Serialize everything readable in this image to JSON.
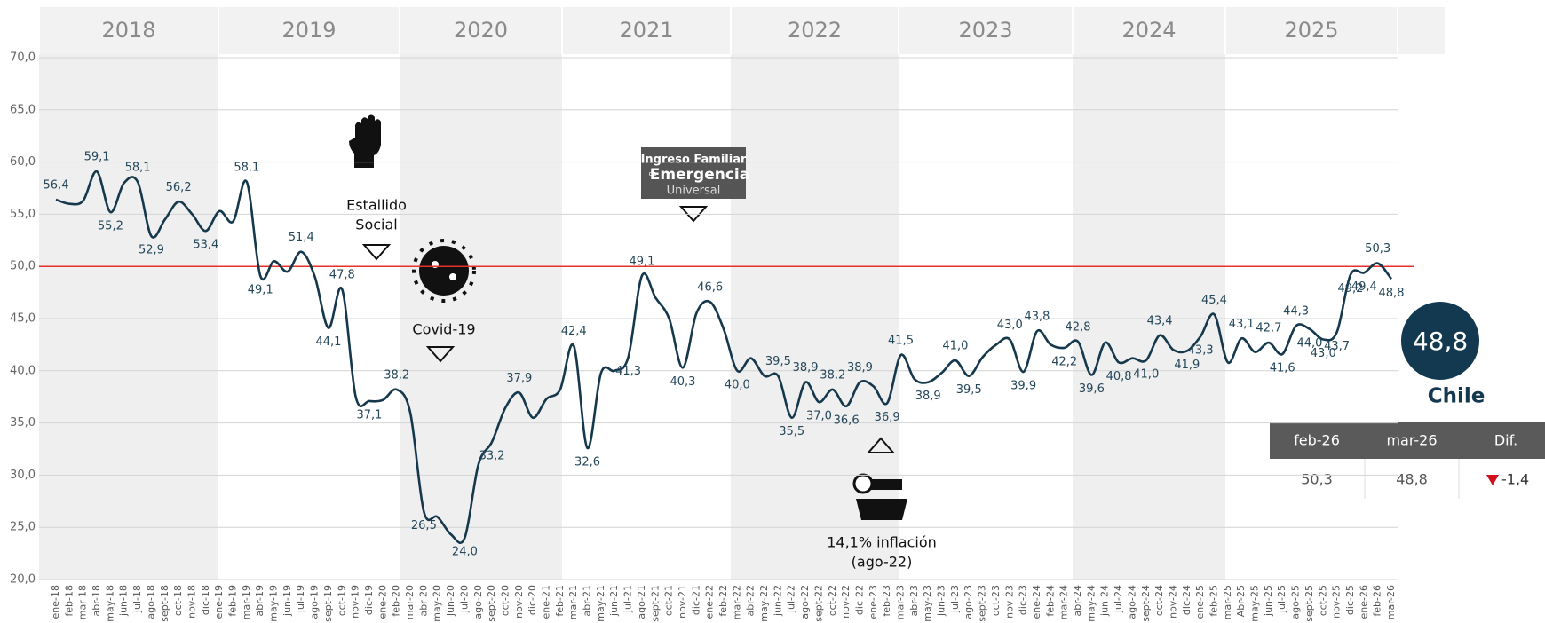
{
  "chart_data": {
    "type": "line",
    "years": [
      "2018",
      "2019",
      "2020",
      "2021",
      "2022",
      "2023",
      "2024",
      "2025"
    ],
    "categories": [
      "ene-18",
      "feb-18",
      "mar-18",
      "abr-18",
      "may-18",
      "jun-18",
      "jul-18",
      "ago-18",
      "sept-18",
      "oct-18",
      "nov-18",
      "dic-18",
      "ene-19",
      "feb-19",
      "mar-19",
      "abr-19",
      "may-19",
      "jun-19",
      "jul-19",
      "ago-19",
      "sept-19",
      "oct-19",
      "nov-19",
      "dic-19",
      "ene-20",
      "feb-20",
      "mar-20",
      "abr-20",
      "may-20",
      "jun-20",
      "jul-20",
      "ago-20",
      "sept-20",
      "oct-20",
      "nov-20",
      "dic-20",
      "ene-21",
      "feb-21",
      "mar-21",
      "abr-21",
      "may-21",
      "jun-21",
      "jul-21",
      "ago-21",
      "sept-21",
      "oct-21",
      "nov-21",
      "dic-21",
      "ene-22",
      "feb-22",
      "mar-22",
      "abr-22",
      "may-22",
      "jun-22",
      "jul-22",
      "ago-22",
      "sept-22",
      "oct-22",
      "nov-22",
      "dic-22",
      "ene-23",
      "feb-23",
      "mar-23",
      "abr-23",
      "may-23",
      "jun-23",
      "jul-23",
      "ago-23",
      "sept-23",
      "oct-23",
      "nov-23",
      "dic-23",
      "ene-24",
      "feb-24",
      "mar-24",
      "abr-24",
      "may-24",
      "jun-24",
      "jul-24",
      "ago-24",
      "sept-24",
      "oct-24",
      "nov-24",
      "dic-24",
      "ene-25",
      "feb-25",
      "mar-25",
      "Abr-25",
      "may-25",
      "jun-25",
      "jul-25",
      "ago-25",
      "sept-25",
      "oct-25",
      "nov-25",
      "dic-25",
      "ene-26",
      "feb-26",
      "mar-26"
    ],
    "values": [
      56.4,
      56.0,
      56.3,
      59.1,
      55.2,
      58.0,
      58.1,
      52.9,
      54.5,
      56.2,
      55.0,
      53.4,
      55.3,
      54.3,
      58.1,
      49.1,
      50.5,
      49.5,
      51.4,
      49.0,
      44.1,
      47.8,
      37.5,
      37.1,
      37.2,
      38.2,
      36.0,
      26.5,
      26.0,
      24.3,
      24.0,
      31.0,
      33.2,
      36.5,
      37.9,
      35.5,
      37.3,
      38.2,
      42.4,
      32.6,
      39.8,
      40.0,
      41.3,
      49.1,
      47.0,
      45.0,
      40.3,
      45.5,
      46.6,
      44.0,
      40.0,
      41.2,
      39.5,
      39.5,
      35.5,
      38.9,
      37.0,
      38.2,
      36.6,
      38.9,
      38.5,
      36.9,
      41.5,
      39.2,
      38.9,
      39.8,
      41.0,
      39.5,
      41.3,
      42.5,
      43.0,
      39.9,
      43.8,
      42.5,
      42.2,
      42.8,
      39.6,
      42.7,
      40.8,
      41.2,
      41.0,
      43.4,
      42.0,
      41.9,
      43.3,
      45.4,
      40.8,
      43.1,
      41.8,
      42.7,
      41.6,
      44.3,
      44.0,
      43.0,
      43.7,
      49.2,
      49.4,
      50.3,
      48.8
    ],
    "value_labels": [
      "56,4",
      null,
      null,
      "59,1",
      "55,2",
      null,
      "58,1",
      "52,9",
      null,
      "56,2",
      null,
      "53,4",
      null,
      null,
      "58,1",
      "49,1",
      null,
      null,
      "51,4",
      null,
      "44,1",
      "47,8",
      null,
      "37,1",
      null,
      "38,2",
      null,
      "26,5",
      null,
      null,
      "24,0",
      null,
      "33,2",
      null,
      "37,9",
      null,
      null,
      null,
      "42,4",
      "32,6",
      null,
      null,
      "41,3",
      "49,1",
      null,
      null,
      "40,3",
      null,
      "46,6",
      null,
      "40,0",
      null,
      null,
      "39,5",
      "35,5",
      "38,9",
      "37,0",
      "38,2",
      "36,6",
      "38,9",
      null,
      "36,9",
      "41,5",
      null,
      "38,9",
      null,
      "41,0",
      "39,5",
      null,
      null,
      "43,0",
      "39,9",
      "43,8",
      null,
      "42,2",
      "42,8",
      "39,6",
      null,
      "40,8",
      null,
      "41,0",
      "43,4",
      null,
      "41,9",
      "43,3",
      "45,4",
      null,
      "43,1",
      null,
      "42,7",
      "41,6",
      "44,3",
      "44,0",
      "43,0",
      "43,7",
      "49,2",
      "49,4",
      "50,3",
      "48,8"
    ],
    "color": "#15384c",
    "ylim": [
      20,
      70
    ],
    "yticks": [
      {
        "value": 20,
        "label": "20,0"
      },
      {
        "value": 25,
        "label": "25,0"
      },
      {
        "value": 30,
        "label": "30,0"
      },
      {
        "value": 35,
        "label": "35,0"
      },
      {
        "value": 40,
        "label": "40,0"
      },
      {
        "value": 45,
        "label": "45,0"
      },
      {
        "value": 50,
        "label": "50,0"
      },
      {
        "value": 55,
        "label": "55,0"
      },
      {
        "value": 60,
        "label": "60,0"
      },
      {
        "value": 65,
        "label": "65,0"
      },
      {
        "value": 70,
        "label": "70,0"
      }
    ],
    "grid": true,
    "ref_line": {
      "value": 50,
      "color": "#e8302a"
    },
    "annotations": {
      "estallido": [
        "Estallido",
        "Social"
      ],
      "covid": "Covid-19",
      "inflacion": [
        "14,1% inflación",
        "(ago-22)"
      ],
      "ife": [
        "Ingreso Familiar",
        "de",
        "Emergencia",
        "Universal"
      ]
    },
    "summary": {
      "value_label": "48,8",
      "name": "Chile",
      "headers": [
        "feb-26",
        "mar-26",
        "Dif."
      ],
      "row": [
        "50,3",
        "48,8",
        "-1,4"
      ]
    }
  }
}
